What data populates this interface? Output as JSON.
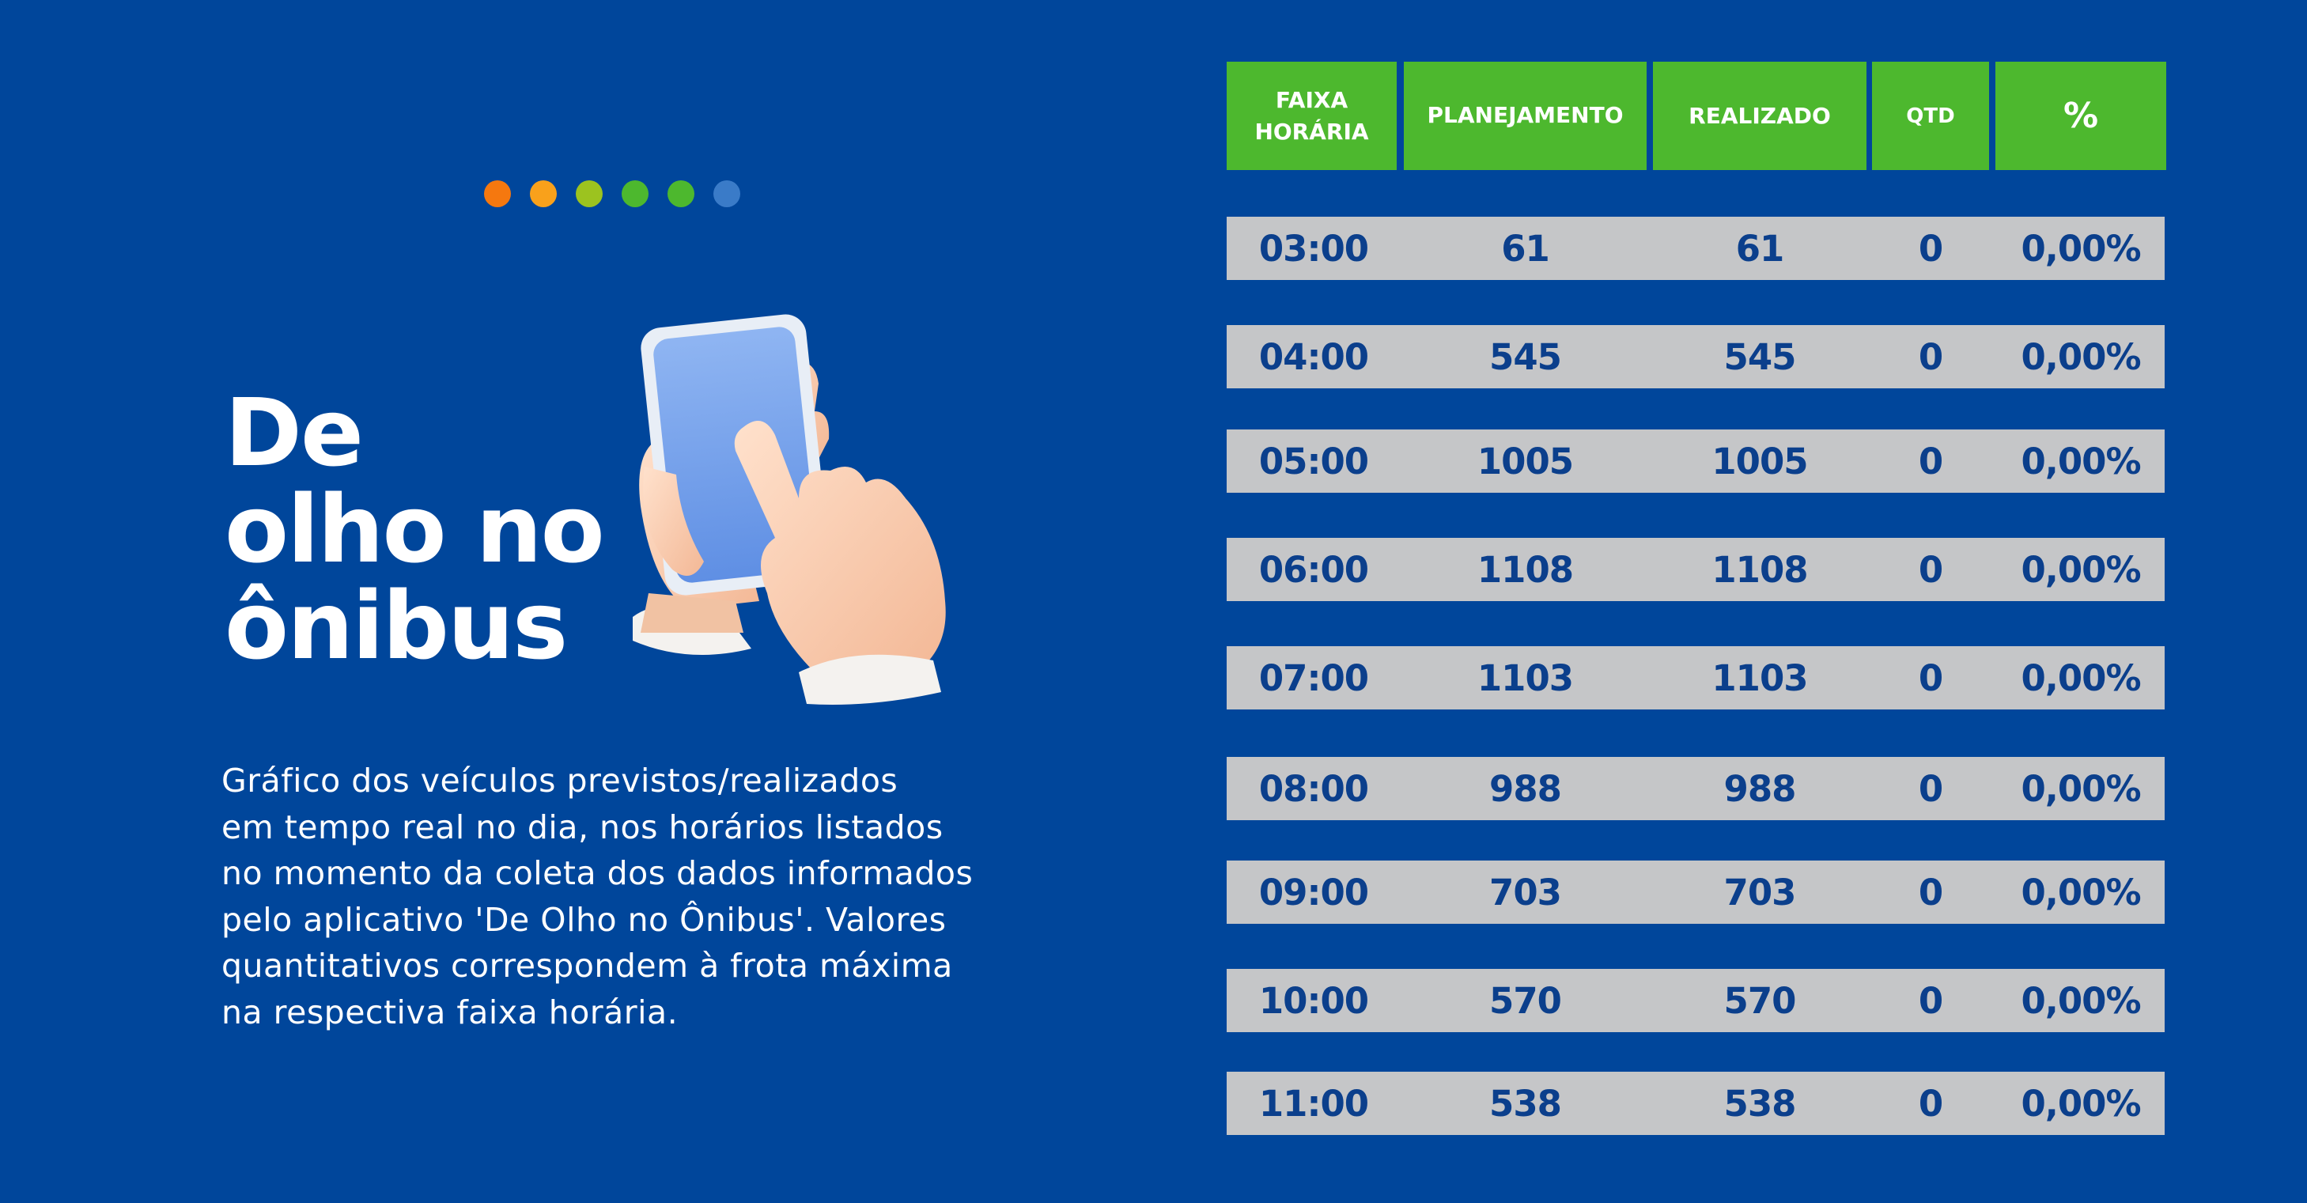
{
  "title_lines": [
    "De",
    "olho no",
    "ônibus"
  ],
  "description_lines": [
    "Gráfico dos veículos previstos/realizados",
    "em tempo real no dia, nos horários  listados",
    "no momento da coleta dos dados informados",
    "pelo aplicativo  'De Olho no Ônibus'. Valores",
    "quantitativos correspondem à frota máxima",
    "na respectiva faixa horária."
  ],
  "dots_colors": [
    "#f5780f",
    "#f9a11b",
    "#9cc31f",
    "#4db82e",
    "#4db82e",
    "#3a7bc8"
  ],
  "colors": {
    "background": "#00469b",
    "header_bg": "#4db82e",
    "row_bg": "#c5c6c8",
    "row_text": "#0b3f8c"
  },
  "table": {
    "headers": [
      "FAIXA\nHORÁRIA",
      "PLANEJAMENTO",
      "REALIZADO",
      "QTD",
      "%"
    ],
    "header_line1": "FAIXA",
    "header_line2": "HORÁRIA",
    "rows": [
      {
        "hora": "03:00",
        "planejamento": "61",
        "realizado": "61",
        "qtd": "0",
        "pct": "0,00%"
      },
      {
        "hora": "04:00",
        "planejamento": "545",
        "realizado": "545",
        "qtd": "0",
        "pct": "0,00%"
      },
      {
        "hora": "05:00",
        "planejamento": "1005",
        "realizado": "1005",
        "qtd": "0",
        "pct": "0,00%"
      },
      {
        "hora": "06:00",
        "planejamento": "1108",
        "realizado": "1108",
        "qtd": "0",
        "pct": "0,00%"
      },
      {
        "hora": "07:00",
        "planejamento": "1103",
        "realizado": "1103",
        "qtd": "0",
        "pct": "0,00%"
      },
      {
        "hora": "08:00",
        "planejamento": "988",
        "realizado": "988",
        "qtd": "0",
        "pct": "0,00%"
      },
      {
        "hora": "09:00",
        "planejamento": "703",
        "realizado": "703",
        "qtd": "0",
        "pct": "0,00%"
      },
      {
        "hora": "10:00",
        "planejamento": "570",
        "realizado": "570",
        "qtd": "0",
        "pct": "0,00%"
      },
      {
        "hora": "11:00",
        "planejamento": "538",
        "realizado": "538",
        "qtd": "0",
        "pct": "0,00%"
      }
    ]
  },
  "illustration": "hand-tapping-phone-icon"
}
